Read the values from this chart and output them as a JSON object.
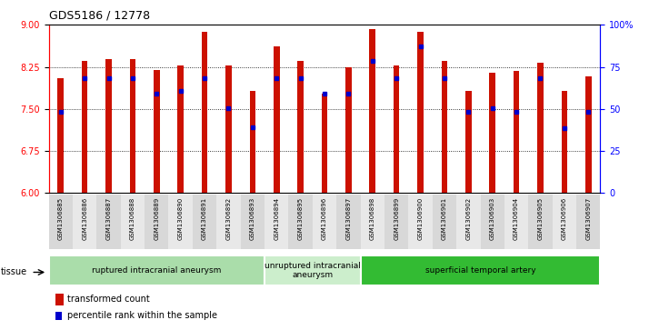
{
  "title": "GDS5186 / 12778",
  "samples": [
    "GSM1306885",
    "GSM1306886",
    "GSM1306887",
    "GSM1306888",
    "GSM1306889",
    "GSM1306890",
    "GSM1306891",
    "GSM1306892",
    "GSM1306893",
    "GSM1306894",
    "GSM1306895",
    "GSM1306896",
    "GSM1306897",
    "GSM1306898",
    "GSM1306899",
    "GSM1306900",
    "GSM1306901",
    "GSM1306902",
    "GSM1306903",
    "GSM1306904",
    "GSM1306905",
    "GSM1306906",
    "GSM1306907"
  ],
  "bar_values": [
    8.05,
    8.35,
    8.38,
    8.38,
    8.19,
    8.28,
    8.88,
    8.28,
    7.82,
    8.62,
    8.35,
    7.78,
    8.25,
    8.92,
    8.28,
    8.88,
    8.35,
    7.82,
    8.15,
    8.18,
    8.32,
    7.82,
    8.08
  ],
  "percentile_values": [
    7.44,
    8.05,
    8.05,
    8.05,
    7.78,
    7.82,
    8.05,
    7.52,
    7.18,
    8.05,
    8.05,
    7.78,
    7.78,
    8.35,
    8.05,
    8.62,
    8.05,
    7.44,
    7.52,
    7.45,
    8.05,
    7.15,
    7.44
  ],
  "bar_color": "#CC1100",
  "percentile_color": "#0000CC",
  "ylim_left": [
    6,
    9
  ],
  "yticks_left": [
    6,
    6.75,
    7.5,
    8.25,
    9
  ],
  "ylim_right": [
    0,
    100
  ],
  "yticks_right": [
    0,
    25,
    50,
    75,
    100
  ],
  "groups": [
    {
      "label": "ruptured intracranial aneurysm",
      "start": 0,
      "end": 9,
      "color": "#aaddaa"
    },
    {
      "label": "unruptured intracranial\naneurysm",
      "start": 9,
      "end": 13,
      "color": "#cceecc"
    },
    {
      "label": "superficial temporal artery",
      "start": 13,
      "end": 23,
      "color": "#33bb33"
    }
  ],
  "tissue_label": "tissue",
  "legend_bar_label": "transformed count",
  "legend_pct_label": "percentile rank within the sample",
  "cell_bg_odd": "#d8d8d8",
  "cell_bg_even": "#e8e8e8"
}
